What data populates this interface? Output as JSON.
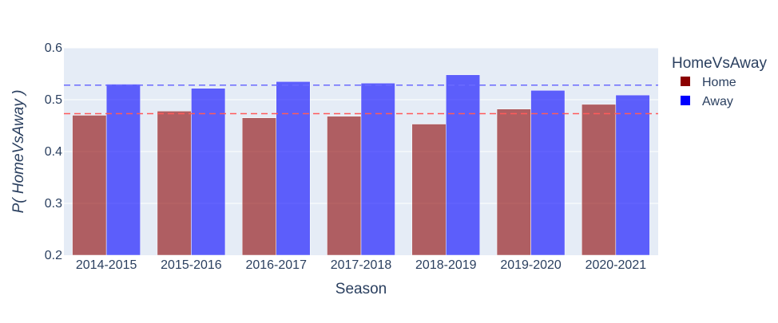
{
  "chart_data": {
    "type": "bar",
    "xlabel": "Season",
    "ylabel": "P( HomeVsAway )",
    "ylim": [
      0.2,
      0.6
    ],
    "yticks": [
      0.2,
      0.3,
      0.4,
      0.5,
      0.6
    ],
    "ytick_labels": [
      "0.2",
      "0.3",
      "0.4",
      "0.5",
      "0.6"
    ],
    "categories": [
      "2014-2015",
      "2015-2016",
      "2016-2017",
      "2017-2018",
      "2018-2019",
      "2019-2020",
      "2020-2021"
    ],
    "series": [
      {
        "name": "Home",
        "color": "#8b0000",
        "values": [
          0.47,
          0.478,
          0.465,
          0.468,
          0.453,
          0.482,
          0.491
        ]
      },
      {
        "name": "Away",
        "color": "#0000ff",
        "values": [
          0.53,
          0.522,
          0.535,
          0.532,
          0.548,
          0.518,
          0.509
        ]
      }
    ],
    "reference_lines": [
      {
        "series": "Away",
        "y": 0.528,
        "style": "dashed",
        "color": "#6a6aff"
      },
      {
        "series": "Home",
        "y": 0.473,
        "style": "dashed",
        "color": "#ff5a5a"
      }
    ],
    "legend": {
      "title": "HomeVsAway",
      "position": "top-right"
    },
    "grid": true,
    "plot_background": "#e5ecf6"
  }
}
